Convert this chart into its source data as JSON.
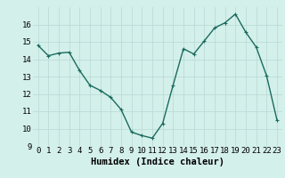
{
  "x": [
    0,
    1,
    2,
    3,
    4,
    5,
    6,
    7,
    8,
    9,
    10,
    11,
    12,
    13,
    14,
    15,
    16,
    17,
    18,
    19,
    20,
    21,
    22,
    23
  ],
  "y": [
    14.8,
    14.2,
    14.35,
    14.4,
    13.35,
    12.5,
    12.2,
    11.8,
    11.1,
    9.8,
    9.6,
    9.45,
    10.3,
    12.5,
    14.6,
    14.3,
    15.05,
    15.8,
    16.1,
    16.6,
    15.55,
    14.7,
    13.05,
    10.5
  ],
  "xlim": [
    -0.5,
    23.5
  ],
  "ylim": [
    9,
    17
  ],
  "yticks": [
    9,
    10,
    11,
    12,
    13,
    14,
    15,
    16
  ],
  "xticks": [
    0,
    1,
    2,
    3,
    4,
    5,
    6,
    7,
    8,
    9,
    10,
    11,
    12,
    13,
    14,
    15,
    16,
    17,
    18,
    19,
    20,
    21,
    22,
    23
  ],
  "xlabel": "Humidex (Indice chaleur)",
  "line_color": "#1a6b5e",
  "marker": "+",
  "marker_size": 3,
  "bg_color": "#d4f0eb",
  "grid_color": "#b8d8d4",
  "tick_label_fontsize": 6.5,
  "xlabel_fontsize": 7.5,
  "line_width": 1.0
}
